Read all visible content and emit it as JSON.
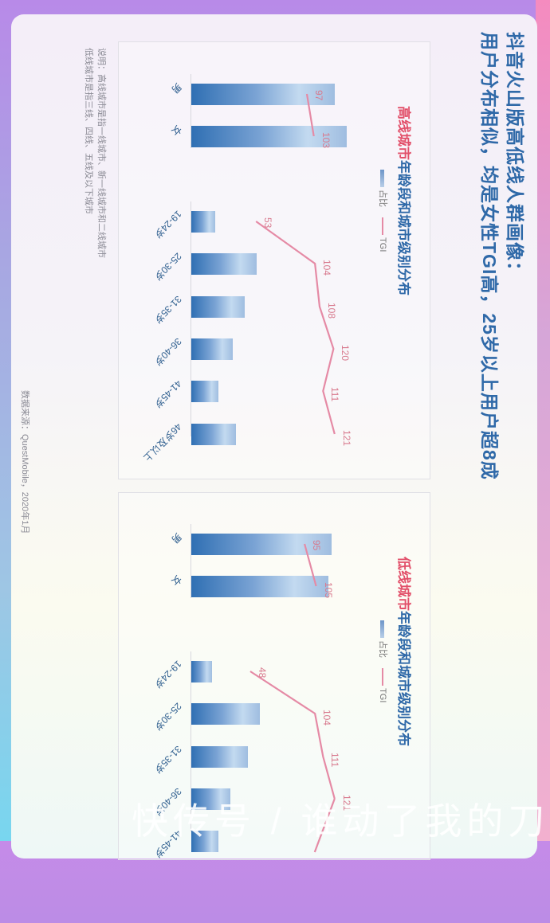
{
  "title": {
    "line1": "抖音火山版高低线人群画像：",
    "line2": "用户分布相似，均是女性TGI高，25岁以上用户超8成"
  },
  "panels": [
    {
      "title_highlight": "高线城市",
      "title_rest": "年龄段和城市级别分布",
      "legend": {
        "bar": "占比",
        "line": "TGI"
      }
    },
    {
      "title_highlight": "低线城市",
      "title_rest": "年龄段和城市级别分布",
      "legend": {
        "bar": "占比",
        "line": "TGI"
      }
    }
  ],
  "note": {
    "line1": "说明：高线城市是指一线城市、新一线城市和二线城市",
    "line2": "低线城市是指三线、四线、五线及以下城市"
  },
  "source": "数据来源：QuestMobile，2020年1月",
  "watermark": "快传号 / 谁动了我的刀",
  "colors": {
    "title": "#2f69a8",
    "highlight": "#e2506a",
    "bar": "#2f6fb3",
    "tgi_line": "#e58aa5"
  },
  "chart_data": [
    {
      "type": "bar",
      "title": "高线城市年龄段和城市级别分布",
      "categories": [
        "男",
        "女",
        "19-24岁",
        "25-30岁",
        "31-35岁",
        "36-40岁",
        "41-45岁",
        "46岁及以上"
      ],
      "series": [
        {
          "name": "占比",
          "type": "bar",
          "values": [
            48,
            52,
            8,
            22,
            18,
            14,
            9,
            15
          ]
        },
        {
          "name": "TGI",
          "type": "line",
          "values": [
            97,
            103,
            53,
            104,
            108,
            120,
            111,
            121
          ]
        }
      ],
      "legend_position": "top",
      "grid": false
    },
    {
      "type": "bar",
      "title": "低线城市年龄段和城市级别分布",
      "categories": [
        "男",
        "女",
        "19-24岁",
        "25-30岁",
        "31-35岁",
        "36-40岁",
        "41-45岁"
      ],
      "series": [
        {
          "name": "占比",
          "type": "bar",
          "values": [
            47,
            46,
            7,
            23,
            19,
            13,
            9
          ]
        },
        {
          "name": "TGI",
          "type": "line",
          "values": [
            95,
            105,
            48,
            104,
            111,
            121,
            null
          ]
        }
      ],
      "legend_position": "top",
      "grid": false
    }
  ]
}
